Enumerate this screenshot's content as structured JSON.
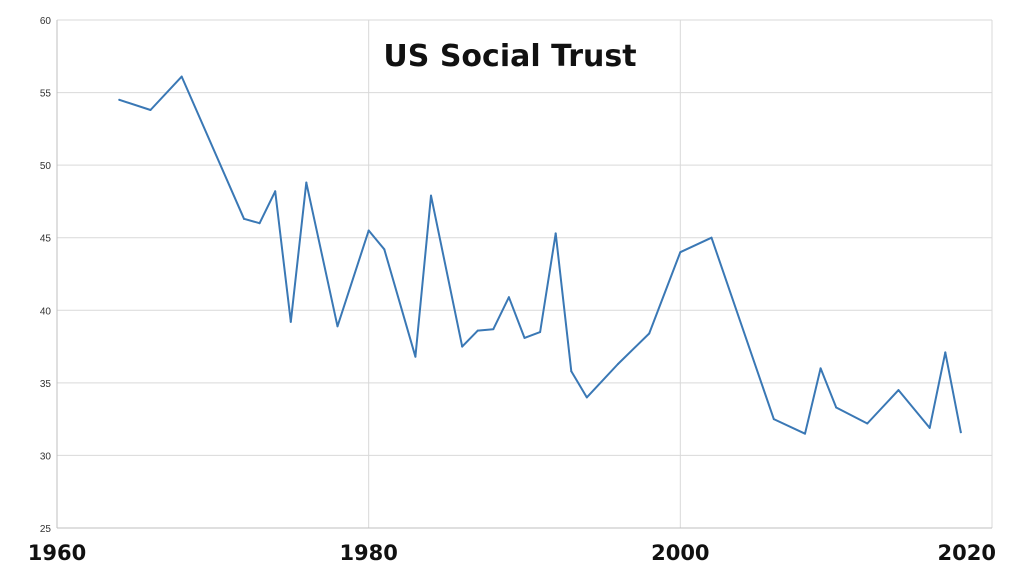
{
  "colors": {
    "series": "#3a78b5",
    "grid": "#d9d9d9"
  },
  "chart_data": {
    "type": "line",
    "title": "US Social Trust",
    "xlabel": "",
    "ylabel": "",
    "xlim": [
      1960,
      2020
    ],
    "ylim": [
      25,
      60
    ],
    "x_ticks": [
      1960,
      1980,
      2000,
      2020
    ],
    "y_ticks": [
      25,
      30,
      35,
      40,
      45,
      50,
      55,
      60
    ],
    "grid": true,
    "legend": "none",
    "series": [
      {
        "points": [
          [
            1964,
            54.5
          ],
          [
            1966,
            53.8
          ],
          [
            1968,
            56.1
          ],
          [
            1972,
            46.3
          ],
          [
            1973,
            46.0
          ],
          [
            1974,
            48.2
          ],
          [
            1975,
            39.2
          ],
          [
            1976,
            48.8
          ],
          [
            1978,
            38.9
          ],
          [
            1980,
            45.5
          ],
          [
            1981,
            44.2
          ],
          [
            1983,
            36.8
          ],
          [
            1984,
            47.9
          ],
          [
            1986,
            37.5
          ],
          [
            1987,
            38.6
          ],
          [
            1988,
            38.7
          ],
          [
            1989,
            40.9
          ],
          [
            1990,
            38.1
          ],
          [
            1991,
            38.5
          ],
          [
            1992,
            45.3
          ],
          [
            1993,
            35.8
          ],
          [
            1994,
            34.0
          ],
          [
            1996,
            36.3
          ],
          [
            1998,
            38.4
          ],
          [
            2000,
            44.0
          ],
          [
            2002,
            45.0
          ],
          [
            2006,
            32.5
          ],
          [
            2008,
            31.5
          ],
          [
            2009,
            36.0
          ],
          [
            2010,
            33.3
          ],
          [
            2012,
            32.2
          ],
          [
            2014,
            34.5
          ],
          [
            2016,
            31.9
          ],
          [
            2017,
            37.1
          ],
          [
            2018,
            31.6
          ]
        ]
      }
    ]
  }
}
